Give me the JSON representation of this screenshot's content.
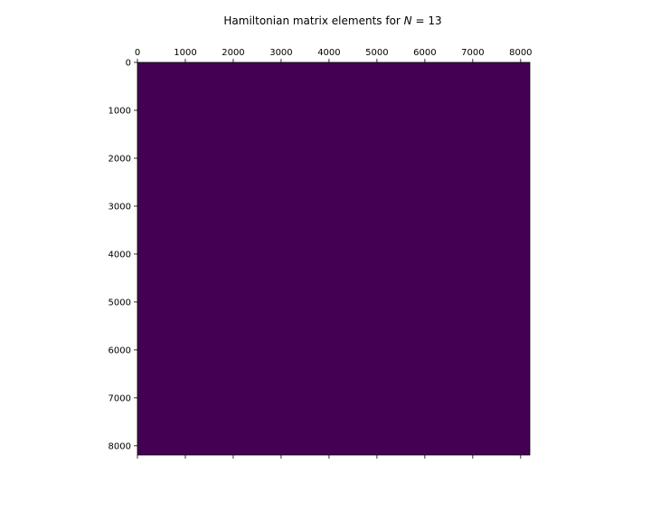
{
  "chart_data": {
    "type": "heatmap",
    "title_prefix": "Hamiltonian matrix elements for ",
    "title_var": "N",
    "title_rest": " = 13",
    "xlabel": "",
    "ylabel": "",
    "matrix_size": 8192,
    "xlim": [
      0,
      8192
    ],
    "ylim": [
      8192,
      0
    ],
    "x_ticks": [
      0,
      1000,
      2000,
      3000,
      4000,
      5000,
      6000,
      7000,
      8000
    ],
    "y_ticks": [
      0,
      1000,
      2000,
      3000,
      4000,
      5000,
      6000,
      7000,
      8000
    ],
    "x_tick_labels": [
      "0",
      "1000",
      "2000",
      "3000",
      "4000",
      "5000",
      "6000",
      "7000",
      "8000"
    ],
    "y_tick_labels": [
      "0",
      "1000",
      "2000",
      "3000",
      "4000",
      "5000",
      "6000",
      "7000",
      "8000"
    ],
    "x_axis_position": "top",
    "grid": false,
    "colormap": "viridis",
    "fill_color": "#440154",
    "uniform_value": 0
  }
}
